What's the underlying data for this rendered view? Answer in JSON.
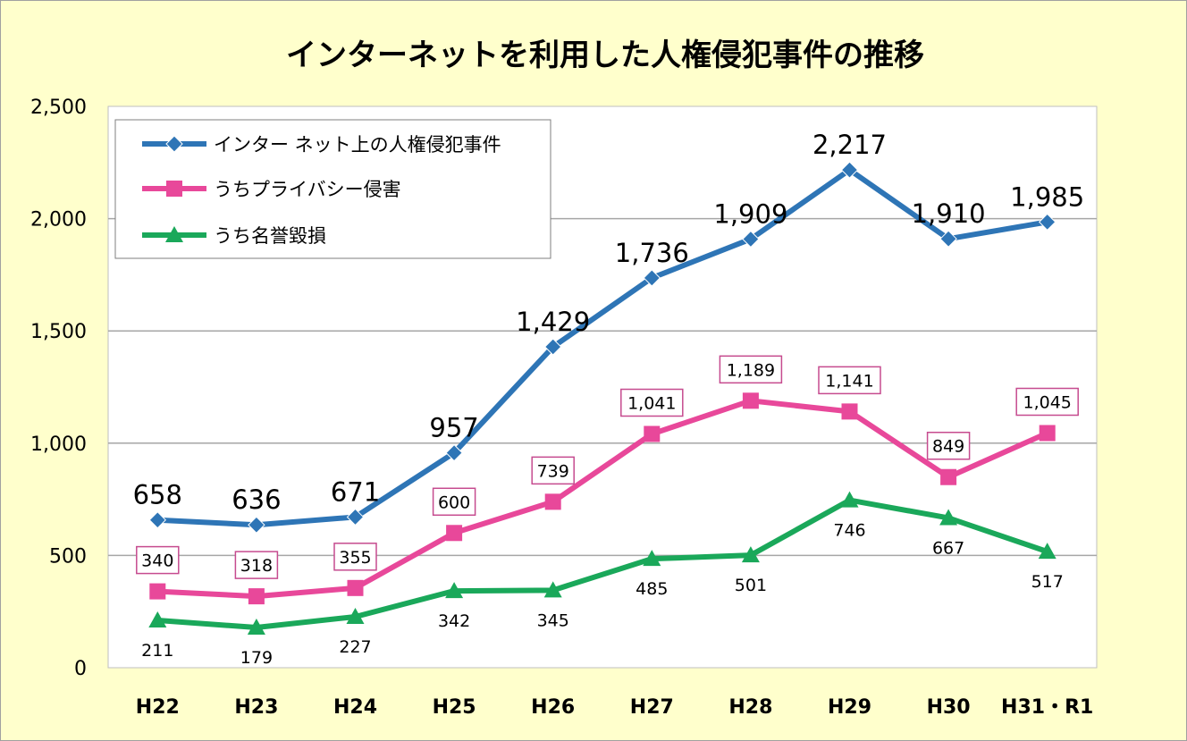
{
  "chart_data": {
    "type": "line",
    "title": "インターネットを利用した人権侵犯事件の推移",
    "categories": [
      "H22",
      "H23",
      "H24",
      "H25",
      "H26",
      "H27",
      "H28",
      "H29",
      "H30",
      "H31・R1"
    ],
    "ylim": [
      0,
      2500
    ],
    "yticks": [
      0,
      500,
      1000,
      1500,
      2000,
      2500
    ],
    "ytick_labels": [
      "0",
      "500",
      "1,000",
      "1,500",
      "2,000",
      "2,500"
    ],
    "grid": true,
    "legend_position": "top-left",
    "series": [
      {
        "name": "インター ネット上の人権侵犯事件",
        "values": [
          658,
          636,
          671,
          957,
          1429,
          1736,
          1909,
          2217,
          1910,
          1985
        ],
        "labels": [
          "658",
          "636",
          "671",
          "957",
          "1,429",
          "1,736",
          "1,909",
          "2,217",
          "1,910",
          "1,985"
        ],
        "color": "#2e75b6",
        "marker": "diamond"
      },
      {
        "name": "うちプライバシー侵害",
        "values": [
          340,
          318,
          355,
          600,
          739,
          1041,
          1189,
          1141,
          849,
          1045
        ],
        "labels": [
          "340",
          "318",
          "355",
          "600",
          "739",
          "1,041",
          "1,189",
          "1,141",
          "849",
          "1,045"
        ],
        "color": "#e8489a",
        "marker": "square"
      },
      {
        "name": "うち名誉毀損",
        "values": [
          211,
          179,
          227,
          342,
          345,
          485,
          501,
          746,
          667,
          517
        ],
        "labels": [
          "211",
          "179",
          "227",
          "342",
          "345",
          "485",
          "501",
          "746",
          "667",
          "517"
        ],
        "color": "#1aa85a",
        "marker": "triangle"
      }
    ]
  }
}
